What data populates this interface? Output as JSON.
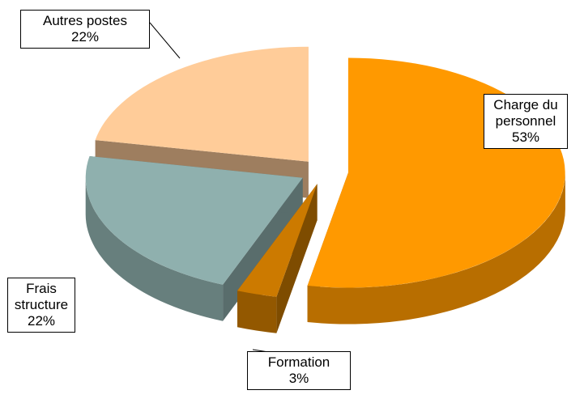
{
  "chart_data": {
    "type": "pie",
    "three_d": true,
    "exploded": true,
    "categories": [
      "Charge du personnel",
      "Formation",
      "Frais structure",
      "Autres postes"
    ],
    "values": [
      53,
      3,
      22,
      22
    ],
    "value_labels": [
      "53%",
      "3%",
      "22%",
      "22%"
    ],
    "colors": [
      "#ff9900",
      "#cc7a00",
      "#8fb0ae",
      "#ffcc99"
    ]
  }
}
